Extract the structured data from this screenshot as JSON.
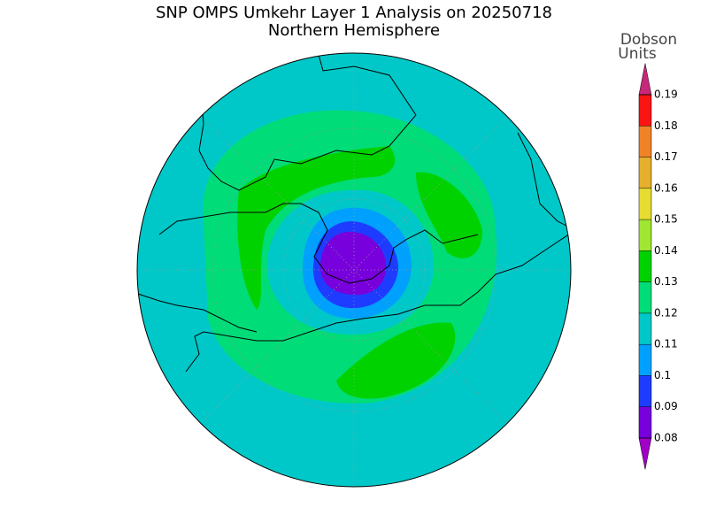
{
  "title": "SNP OMPS Umkehr Layer 1 Analysis on 20250718",
  "subtitle": "Northern Hemisphere",
  "colorbar": {
    "label_lines": [
      "Dobson",
      "Units"
    ],
    "ticks": [
      0.08,
      0.09,
      0.1,
      0.11,
      0.12,
      0.13,
      0.14,
      0.15,
      0.16,
      0.17,
      0.18,
      0.19
    ],
    "colors": [
      "#a000c8",
      "#7800dc",
      "#1e3cff",
      "#00a0ff",
      "#00c8c8",
      "#00dc78",
      "#00d200",
      "#a0e632",
      "#e6dc32",
      "#e6af2d",
      "#f08228",
      "#fa1414",
      "#c8287a"
    ]
  }
}
